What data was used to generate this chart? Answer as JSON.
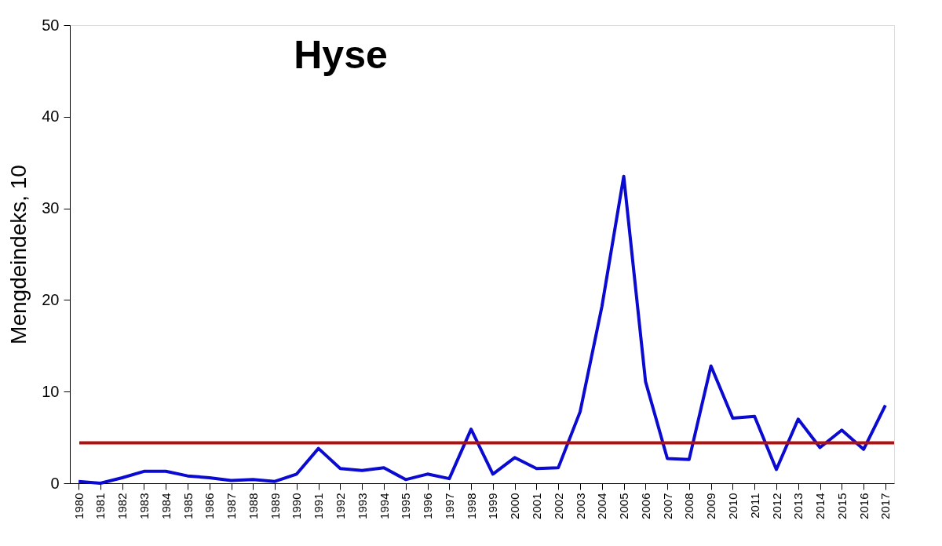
{
  "chart_data": {
    "type": "line",
    "title": "Hyse",
    "ylabel": "Mengdeindeks, 10",
    "categories": [
      "1980",
      "1981",
      "1982",
      "1983",
      "1984",
      "1985",
      "1986",
      "1987",
      "1988",
      "1989",
      "1990",
      "1991",
      "1992",
      "1993",
      "1994",
      "1995",
      "1996",
      "1997",
      "1998",
      "1999",
      "2000",
      "2001",
      "2002",
      "2003",
      "2004",
      "2005",
      "2006",
      "2007",
      "2008",
      "2009",
      "2010",
      "2011",
      "2012",
      "2013",
      "2014",
      "2015",
      "2016",
      "2017"
    ],
    "series": [
      {
        "color": "#0a0ad0",
        "values": [
          0.2,
          0.0,
          0.6,
          1.3,
          1.3,
          0.8,
          0.6,
          0.3,
          0.4,
          0.2,
          1.0,
          3.8,
          1.6,
          1.4,
          1.7,
          0.4,
          1.0,
          0.5,
          5.9,
          1.0,
          2.8,
          1.6,
          1.7,
          7.8,
          19.3,
          33.5,
          11.1,
          2.7,
          2.6,
          12.8,
          7.1,
          7.3,
          1.5,
          7.0,
          3.9,
          5.8,
          3.7,
          8.5
        ]
      }
    ],
    "ylim": [
      0,
      50
    ],
    "yticks": [
      0,
      10,
      20,
      30,
      40,
      50
    ],
    "grid": false,
    "legend": false,
    "marker": "none",
    "line_style": "solid",
    "ref_lines": [
      {
        "axis": "y",
        "value": 4.4,
        "color": "#b01010"
      }
    ]
  }
}
